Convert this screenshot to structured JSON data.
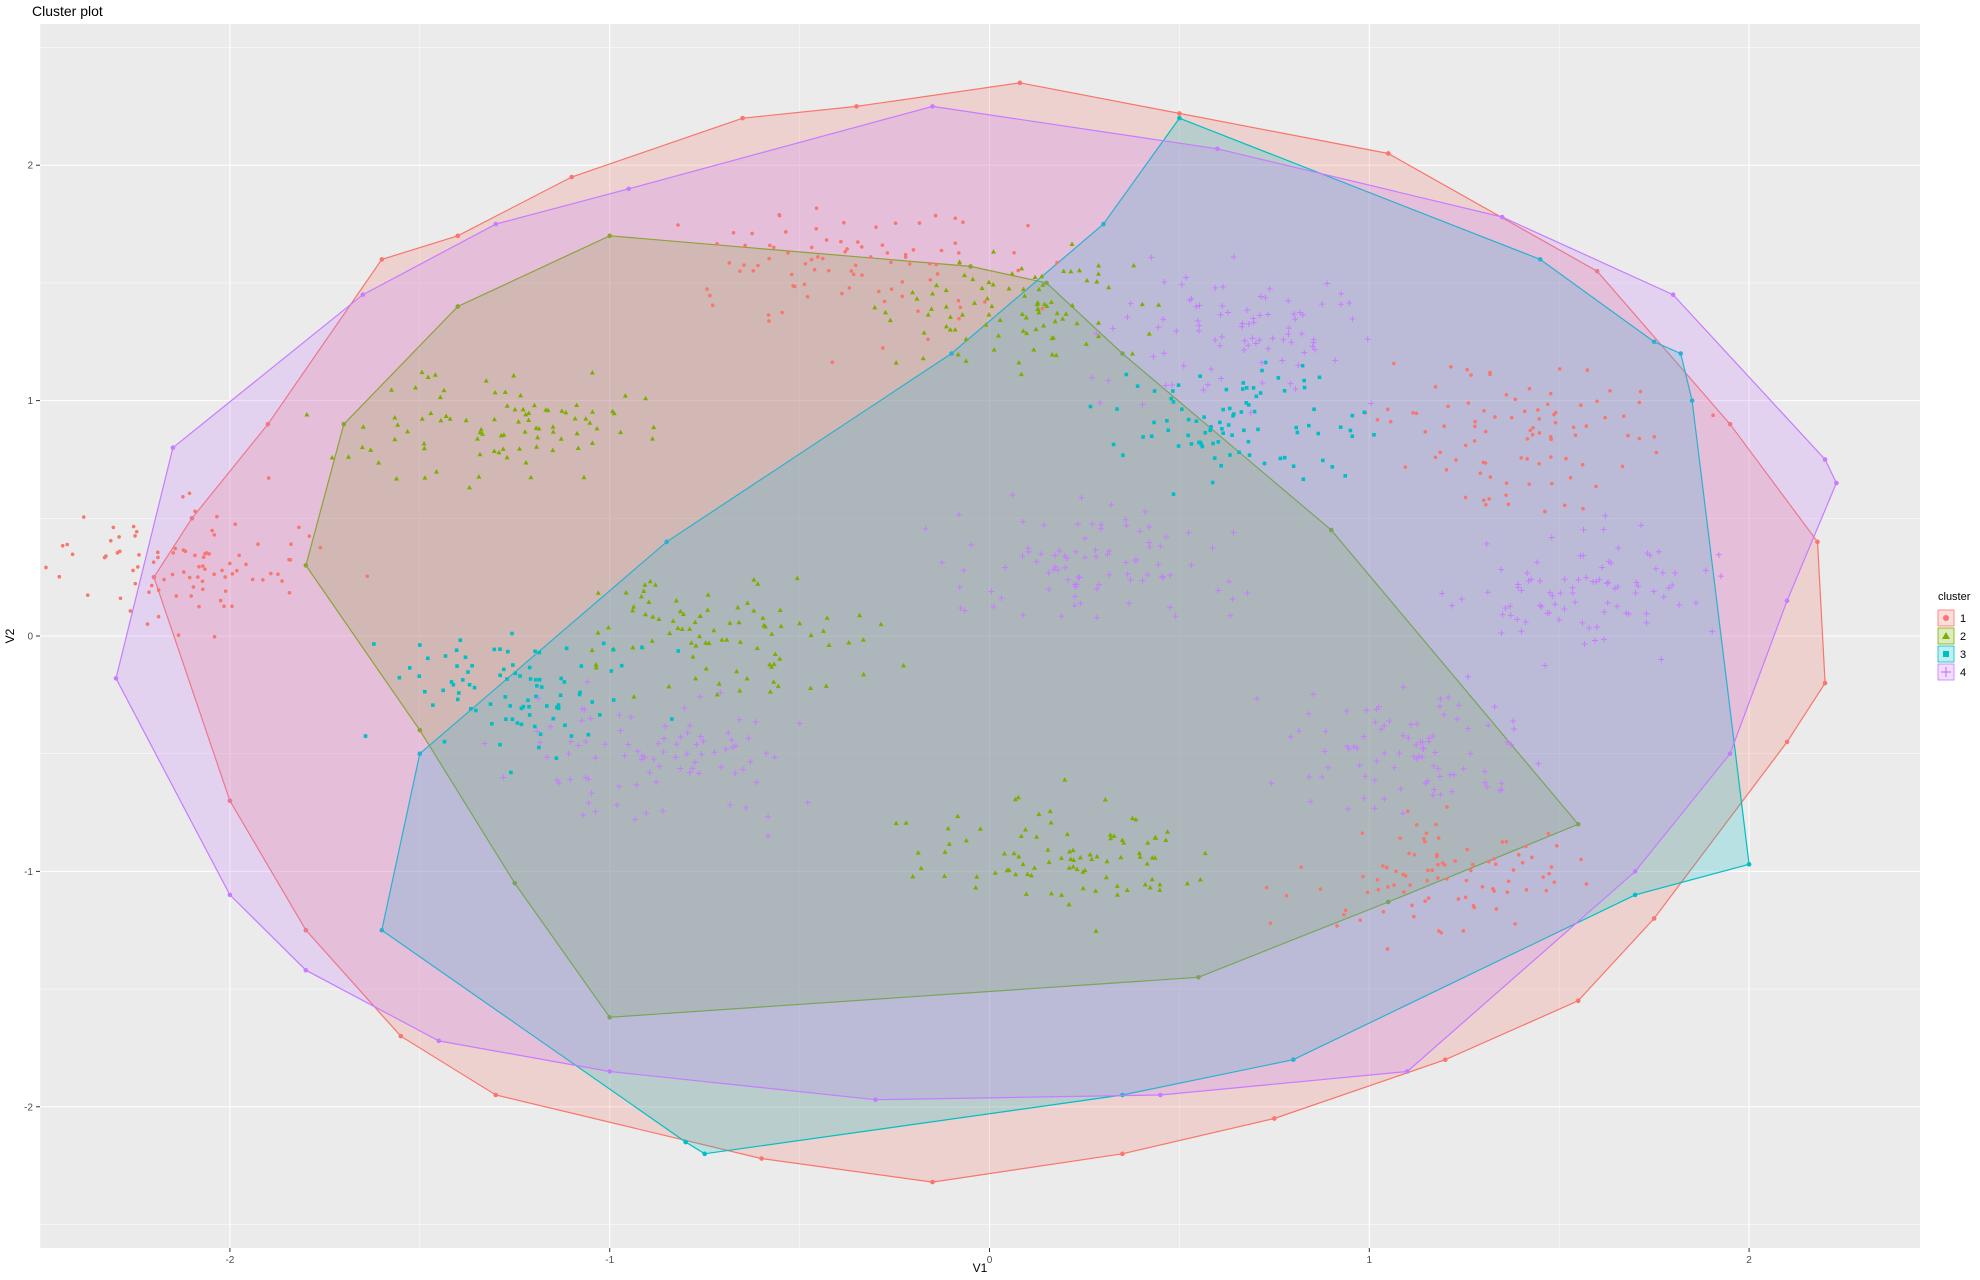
{
  "chart_data": {
    "type": "scatter",
    "title": "Cluster plot",
    "xlabel": "V1",
    "ylabel": "V2",
    "xlim": [
      -2.5,
      2.45
    ],
    "ylim": [
      -2.6,
      2.6
    ],
    "x_ticks": [
      -2,
      -1,
      0,
      1,
      2
    ],
    "y_ticks": [
      -2,
      -1,
      0,
      1,
      2
    ],
    "grid": true,
    "legend": {
      "title": "cluster",
      "placement": "right",
      "entries": [
        "1",
        "2",
        "3",
        "4"
      ]
    },
    "series": [
      {
        "name": "1",
        "color": "#F8766D",
        "marker": "circle",
        "hull": [
          [
            0.08,
            2.35
          ],
          [
            0.5,
            2.22
          ],
          [
            1.05,
            2.05
          ],
          [
            1.6,
            1.55
          ],
          [
            1.95,
            0.9
          ],
          [
            2.18,
            0.4
          ],
          [
            2.2,
            -0.2
          ],
          [
            2.1,
            -0.45
          ],
          [
            1.75,
            -1.2
          ],
          [
            1.55,
            -1.55
          ],
          [
            1.2,
            -1.8
          ],
          [
            0.75,
            -2.05
          ],
          [
            0.35,
            -2.2
          ],
          [
            -0.15,
            -2.32
          ],
          [
            -0.6,
            -2.22
          ],
          [
            -1.3,
            -1.95
          ],
          [
            -1.55,
            -1.7
          ],
          [
            -1.8,
            -1.25
          ],
          [
            -2.0,
            -0.7
          ],
          [
            -2.2,
            0.25
          ],
          [
            -2.1,
            0.5
          ],
          [
            -1.9,
            0.9
          ],
          [
            -1.6,
            1.6
          ],
          [
            -1.4,
            1.7
          ],
          [
            -1.1,
            1.95
          ],
          [
            -0.65,
            2.2
          ],
          [
            -0.35,
            2.25
          ]
        ],
        "centers": [
          {
            "x": -0.35,
            "y": 1.55
          },
          {
            "x": 1.4,
            "y": 0.85
          },
          {
            "x": 1.18,
            "y": -1.03
          },
          {
            "x": -2.1,
            "y": 0.3
          }
        ]
      },
      {
        "name": "2",
        "color": "#7CAE00",
        "marker": "triangle",
        "hull": [
          [
            -1.0,
            1.7
          ],
          [
            -0.05,
            1.57
          ],
          [
            0.15,
            1.5
          ],
          [
            0.35,
            1.2
          ],
          [
            0.9,
            0.45
          ],
          [
            1.55,
            -0.8
          ],
          [
            1.05,
            -1.13
          ],
          [
            0.55,
            -1.45
          ],
          [
            -1.0,
            -1.62
          ],
          [
            -1.25,
            -1.05
          ],
          [
            -1.5,
            -0.4
          ],
          [
            -1.8,
            0.3
          ],
          [
            -1.7,
            0.9
          ],
          [
            -1.4,
            1.4
          ]
        ],
        "centers": [
          {
            "x": -1.3,
            "y": 0.9
          },
          {
            "x": 0.05,
            "y": 1.4
          },
          {
            "x": -0.7,
            "y": 0.0
          },
          {
            "x": 0.2,
            "y": -0.95
          }
        ]
      },
      {
        "name": "3",
        "color": "#00BFC4",
        "marker": "square",
        "hull": [
          [
            0.5,
            2.2
          ],
          [
            1.45,
            1.6
          ],
          [
            1.75,
            1.25
          ],
          [
            1.82,
            1.2
          ],
          [
            1.85,
            1.0
          ],
          [
            2.0,
            -0.97
          ],
          [
            1.7,
            -1.1
          ],
          [
            0.8,
            -1.8
          ],
          [
            0.35,
            -1.95
          ],
          [
            -0.75,
            -2.2
          ],
          [
            -0.8,
            -2.15
          ],
          [
            -1.6,
            -1.25
          ],
          [
            -1.5,
            -0.5
          ],
          [
            -0.85,
            0.4
          ],
          [
            -0.1,
            1.2
          ],
          [
            0.3,
            1.75
          ]
        ],
        "centers": [
          {
            "x": 0.65,
            "y": 0.92
          },
          {
            "x": -1.23,
            "y": -0.22
          }
        ]
      },
      {
        "name": "4",
        "color": "#C77CFF",
        "marker": "plus",
        "hull": [
          [
            -0.15,
            2.25
          ],
          [
            0.6,
            2.07
          ],
          [
            1.35,
            1.78
          ],
          [
            1.8,
            1.45
          ],
          [
            2.2,
            0.75
          ],
          [
            2.23,
            0.65
          ],
          [
            2.1,
            0.15
          ],
          [
            1.95,
            -0.5
          ],
          [
            1.7,
            -1.0
          ],
          [
            1.1,
            -1.85
          ],
          [
            0.45,
            -1.95
          ],
          [
            -0.3,
            -1.97
          ],
          [
            -1.0,
            -1.85
          ],
          [
            -1.45,
            -1.72
          ],
          [
            -1.8,
            -1.42
          ],
          [
            -2.0,
            -1.1
          ],
          [
            -2.3,
            -0.18
          ],
          [
            -2.15,
            0.8
          ],
          [
            -1.65,
            1.45
          ],
          [
            -1.3,
            1.75
          ],
          [
            -0.95,
            1.9
          ]
        ],
        "centers": [
          {
            "x": 0.25,
            "y": 0.3
          },
          {
            "x": 1.6,
            "y": 0.2
          },
          {
            "x": 1.1,
            "y": -0.5
          },
          {
            "x": -0.9,
            "y": -0.5
          },
          {
            "x": 0.65,
            "y": 1.3
          }
        ]
      }
    ]
  }
}
